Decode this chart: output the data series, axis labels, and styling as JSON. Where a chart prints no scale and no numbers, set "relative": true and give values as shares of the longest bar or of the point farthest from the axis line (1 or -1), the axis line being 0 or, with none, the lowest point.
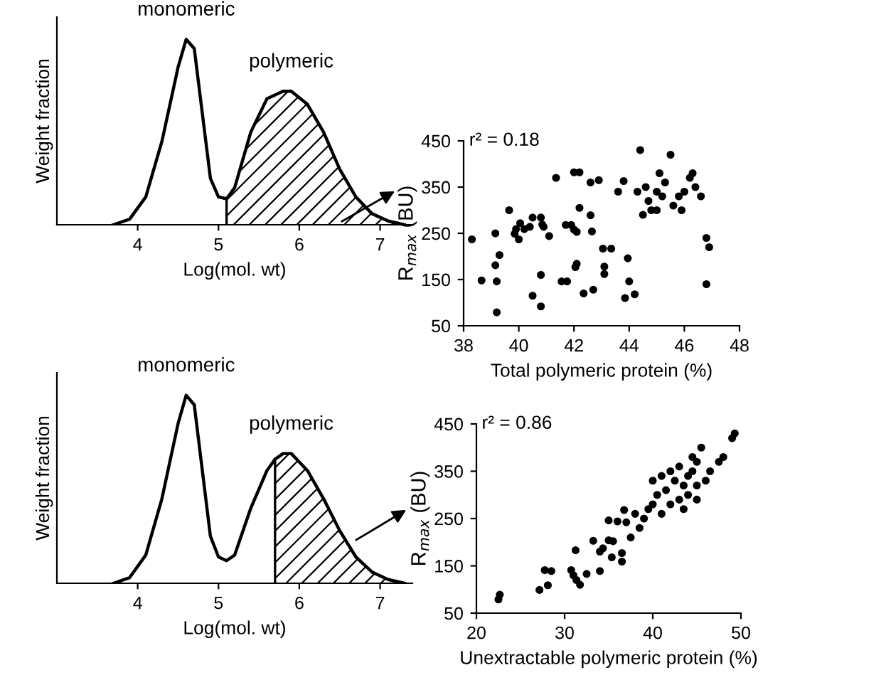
{
  "chart_data": [
    {
      "type": "line",
      "relative": true,
      "xlabel": "Log(mol. wt)",
      "ylabel": "Weight fraction",
      "xlim": [
        3.0,
        7.4
      ],
      "xticks": [
        4,
        5,
        6,
        7
      ],
      "annotations": [
        "monomeric",
        "polymeric"
      ],
      "series": [
        {
          "color": "#000000",
          "x": [
            3.7,
            3.9,
            4.1,
            4.3,
            4.5,
            4.6,
            4.7,
            4.8,
            4.9,
            5.0,
            5.1,
            5.2,
            5.4,
            5.6,
            5.8,
            5.9,
            6.1,
            6.3,
            6.5,
            6.7,
            6.9,
            7.1,
            7.3
          ],
          "values": [
            0,
            0.03,
            0.15,
            0.45,
            0.85,
            1.0,
            0.95,
            0.6,
            0.25,
            0.15,
            0.14,
            0.2,
            0.5,
            0.68,
            0.72,
            0.72,
            0.65,
            0.5,
            0.3,
            0.15,
            0.06,
            0.02,
            0
          ]
        },
        {
          "type": "area",
          "color": "#000000",
          "x": [
            5.1,
            5.2,
            5.4,
            5.6,
            5.8,
            5.9,
            6.1,
            6.3,
            6.5,
            6.7,
            6.9,
            7.1,
            7.3
          ],
          "values": [
            0.14,
            0.2,
            0.5,
            0.68,
            0.72,
            0.72,
            0.65,
            0.5,
            0.3,
            0.15,
            0.06,
            0.02,
            0
          ]
        }
      ]
    },
    {
      "type": "scatter",
      "xlabel": "Total polymeric protein (%)",
      "ylabel": "R$_{max}$ (BU)",
      "xlim": [
        38,
        48
      ],
      "xticks": [
        38,
        40,
        42,
        44,
        46,
        48
      ],
      "ylim": [
        50,
        450
      ],
      "yticks": [
        50,
        150,
        250,
        350,
        450
      ],
      "marker": "circle",
      "annotations": [
        "r² = 0.18"
      ],
      "series": [
        {
          "color": "#000000",
          "x": [
            38.3,
            38.65,
            39.15,
            39.3,
            39.2,
            39.2,
            39.15,
            39.65,
            39.9,
            39.85,
            40.0,
            40.05,
            40.2,
            40.4,
            40.5,
            40.8,
            40.85,
            40.9,
            41.1,
            40.5,
            40.8,
            40.8,
            41.35,
            41.55,
            41.75,
            41.7,
            41.9,
            42.0,
            42.1,
            42.0,
            42.2,
            42.2,
            42.1,
            42.05,
            42.35,
            42.6,
            42.65,
            42.7,
            42.6,
            42.9,
            43.05,
            43.1,
            43.1,
            43.35,
            43.6,
            43.8,
            43.95,
            44.0,
            43.85,
            44.2,
            44.4,
            44.3,
            44.6,
            44.7,
            44.8,
            45.0,
            45.2,
            45.3,
            45.1,
            45.5,
            45.6,
            45.8,
            45.9,
            46.0,
            46.2,
            46.4,
            46.6,
            46.3,
            46.8,
            46.9,
            46.8,
            45.0,
            44.5
          ],
          "values": [
            237,
            148,
            181,
            203,
            146,
            79,
            250,
            300,
            259,
            249,
            237,
            272,
            259,
            264,
            284,
            284,
            269,
            264,
            244,
            115,
            160,
            92,
            370,
            146,
            146,
            268,
            268,
            258,
            253,
            382,
            382,
            305,
            184,
            177,
            120,
            289,
            254,
            128,
            360,
            365,
            217,
            178,
            162,
            217,
            340,
            363,
            196,
            146,
            110,
            118,
            430,
            340,
            350,
            320,
            300,
            340,
            330,
            360,
            380,
            420,
            310,
            330,
            300,
            340,
            370,
            350,
            330,
            380,
            240,
            220,
            140,
            300,
            290
          ]
        }
      ]
    },
    {
      "type": "line",
      "relative": true,
      "xlabel": "Log(mol. wt)",
      "ylabel": "Weight fraction",
      "xlim": [
        3.0,
        7.4
      ],
      "xticks": [
        4,
        5,
        6,
        7
      ],
      "annotations": [
        "monomeric",
        "polymeric"
      ],
      "series": [
        {
          "color": "#000000",
          "x": [
            3.7,
            3.9,
            4.1,
            4.3,
            4.5,
            4.6,
            4.7,
            4.8,
            4.9,
            5.0,
            5.1,
            5.2,
            5.4,
            5.6,
            5.7,
            5.8,
            5.9,
            6.1,
            6.3,
            6.5,
            6.7,
            6.9,
            7.1,
            7.3
          ],
          "values": [
            0,
            0.03,
            0.15,
            0.45,
            0.85,
            1.0,
            0.95,
            0.6,
            0.25,
            0.14,
            0.12,
            0.15,
            0.4,
            0.6,
            0.66,
            0.69,
            0.69,
            0.6,
            0.45,
            0.28,
            0.14,
            0.06,
            0.02,
            0
          ]
        },
        {
          "type": "area",
          "color": "#000000",
          "x": [
            5.7,
            5.8,
            5.9,
            6.1,
            6.3,
            6.5,
            6.7,
            6.9,
            7.1,
            7.3
          ],
          "values": [
            0.66,
            0.69,
            0.69,
            0.6,
            0.45,
            0.28,
            0.14,
            0.06,
            0.02,
            0
          ]
        }
      ]
    },
    {
      "type": "scatter",
      "xlabel": "Unextractable polymeric protein (%)",
      "ylabel": "R$_{max}$ (BU)",
      "xlim": [
        20,
        50
      ],
      "xticks": [
        20,
        30,
        40,
        50
      ],
      "ylim": [
        50,
        450
      ],
      "yticks": [
        50,
        150,
        250,
        350,
        450
      ],
      "marker": "circle",
      "annotations": [
        "r² = 0.86"
      ],
      "series": [
        {
          "color": "#000000",
          "x": [
            22.5,
            22.65,
            27.15,
            28.1,
            27.75,
            28.5,
            30.75,
            31,
            31.35,
            31.75,
            31.25,
            32.5,
            33.25,
            34,
            34,
            34.35,
            35,
            35,
            35.5,
            35.35,
            36,
            36.5,
            36.5,
            36.75,
            37,
            37.5,
            38,
            38.5,
            39,
            39.5,
            40,
            40,
            40.5,
            41,
            41,
            41.5,
            42,
            42,
            42.5,
            43,
            43,
            43.5,
            43.5,
            44,
            44,
            44.5,
            44.5,
            45,
            45,
            45.5,
            45,
            46,
            46.5,
            47.5,
            48,
            49,
            49.3
          ],
          "values": [
            79,
            89,
            99,
            109,
            141,
            139,
            141,
            130,
            120,
            110,
            183,
            133,
            203,
            139,
            180,
            187,
            246,
            204,
            202,
            168,
            244,
            159,
            177,
            268,
            242,
            210,
            260,
            230,
            250,
            270,
            280,
            330,
            300,
            260,
            340,
            310,
            280,
            350,
            330,
            290,
            360,
            320,
            270,
            340,
            300,
            380,
            350,
            320,
            370,
            400,
            290,
            330,
            350,
            370,
            380,
            420,
            430
          ]
        }
      ]
    }
  ]
}
